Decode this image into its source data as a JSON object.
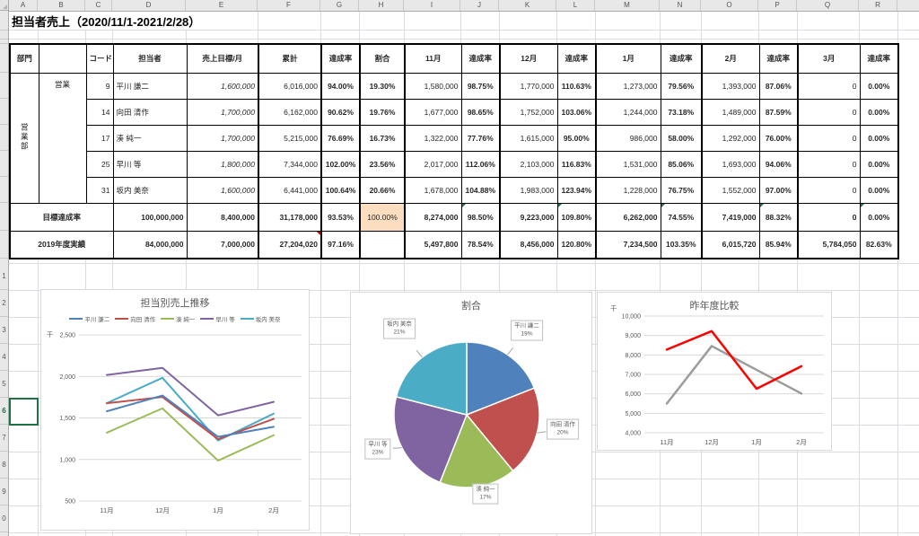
{
  "sheet": {
    "title": "担当者売上（2020/11/1-2021/2/28）",
    "column_letters": [
      "A",
      "B",
      "C",
      "D",
      "E",
      "F",
      "G",
      "H",
      "I",
      "J",
      "K",
      "L",
      "M",
      "N",
      "O",
      "P",
      "Q",
      "R"
    ],
    "visible_row_digits": [
      "1",
      "2",
      "3",
      "4",
      "5",
      "6",
      "7",
      "8",
      "9",
      "0"
    ],
    "selected_row_digit_index": 5
  },
  "table": {
    "headers": {
      "dept": "部門",
      "code": "コード",
      "person": "担当者",
      "target": "売上目標/月",
      "total": "累計",
      "rate": "達成率",
      "share": "割合",
      "months": [
        "11月",
        "12月",
        "1月",
        "2月",
        "3月"
      ]
    },
    "dept_group": "営業部",
    "dept": "営業",
    "rows": [
      {
        "code": "9",
        "name": "平川 謙二",
        "target": "1,600,000",
        "total": "6,016,000",
        "rate": "94.00%",
        "share": "19.30%",
        "months": [
          [
            "1,580,000",
            "98.75%"
          ],
          [
            "1,770,000",
            "110.63%"
          ],
          [
            "1,273,000",
            "79.56%"
          ],
          [
            "1,393,000",
            "87.06%"
          ],
          [
            "0",
            "0.00%"
          ]
        ]
      },
      {
        "code": "14",
        "name": "向田 清作",
        "target": "1,700,000",
        "total": "6,162,000",
        "rate": "90.62%",
        "share": "19.76%",
        "months": [
          [
            "1,677,000",
            "98.65%"
          ],
          [
            "1,752,000",
            "103.06%"
          ],
          [
            "1,244,000",
            "73.18%"
          ],
          [
            "1,489,000",
            "87.59%"
          ],
          [
            "0",
            "0.00%"
          ]
        ]
      },
      {
        "code": "17",
        "name": "湊 純一",
        "target": "1,700,000",
        "total": "5,215,000",
        "rate": "76.69%",
        "share": "16.73%",
        "months": [
          [
            "1,322,000",
            "77.76%"
          ],
          [
            "1,615,000",
            "95.00%"
          ],
          [
            "986,000",
            "58.00%"
          ],
          [
            "1,292,000",
            "76.00%"
          ],
          [
            "0",
            "0.00%"
          ]
        ]
      },
      {
        "code": "25",
        "name": "早川 等",
        "target": "1,800,000",
        "total": "7,344,000",
        "rate": "102.00%",
        "share": "23.56%",
        "months": [
          [
            "2,017,000",
            "112.06%"
          ],
          [
            "2,103,000",
            "116.83%"
          ],
          [
            "1,531,000",
            "85.06%"
          ],
          [
            "1,693,000",
            "94.06%"
          ],
          [
            "0",
            "0.00%"
          ]
        ]
      },
      {
        "code": "31",
        "name": "坂内 美奈",
        "target": "1,600,000",
        "total": "6,441,000",
        "rate": "100.64%",
        "share": "20.66%",
        "months": [
          [
            "1,678,000",
            "104.88%"
          ],
          [
            "1,983,000",
            "123.94%"
          ],
          [
            "1,228,000",
            "76.75%"
          ],
          [
            "1,552,000",
            "97.00%"
          ],
          [
            "0",
            "0.00%"
          ]
        ]
      }
    ],
    "summary_rows": [
      {
        "label": "目標達成率",
        "annual_target": "100,000,000",
        "monthly_target": "8,400,000",
        "total": "31,178,000",
        "rate": "93.53%",
        "share": "100.00%",
        "months": [
          [
            "8,274,000",
            "98.50%"
          ],
          [
            "9,223,000",
            "109.80%"
          ],
          [
            "6,262,000",
            "74.55%"
          ],
          [
            "7,419,000",
            "88.32%"
          ],
          [
            "0",
            "0.00%"
          ]
        ]
      },
      {
        "label": "2019年度実績",
        "annual_target": "84,000,000",
        "monthly_target": "7,000,000",
        "total": "27,204,020",
        "rate": "97.16%",
        "share": "",
        "months": [
          [
            "5,497,800",
            "78.54%"
          ],
          [
            "8,456,000",
            "120.80%"
          ],
          [
            "7,234,500",
            "103.35%"
          ],
          [
            "6,015,720",
            "85.94%"
          ],
          [
            "5,784,050",
            "82.63%"
          ]
        ]
      }
    ]
  },
  "colors": {
    "header_bg": "#1B72C0",
    "header_text": "#FFFF00",
    "summary1_bg": "#FAC090",
    "summary1_share_bg": "#FBDEC0",
    "summary2_bg": "#D9D3E8",
    "percent_text": "#2727D4",
    "target_text": "#C00000",
    "selection_green": "#1E7145",
    "series": [
      "#4F81BD",
      "#C0504D",
      "#9BBB59",
      "#8064A2",
      "#4BACC6"
    ],
    "yoy_series": [
      "#FF0000",
      "#9C9C9C"
    ]
  },
  "chart_data": [
    {
      "type": "line",
      "title": "担当別売上推移",
      "ylabel": "千",
      "categories": [
        "11月",
        "12月",
        "1月",
        "2月"
      ],
      "ylim": [
        500,
        2500
      ],
      "ytick_step": 500,
      "grid": true,
      "legend_position": "top",
      "series": [
        {
          "name": "平川 謙二",
          "values": [
            1580,
            1770,
            1273,
            1393
          ]
        },
        {
          "name": "向田 清作",
          "values": [
            1677,
            1752,
            1244,
            1489
          ]
        },
        {
          "name": "湊 純一",
          "values": [
            1322,
            1615,
            986,
            1292
          ]
        },
        {
          "name": "早川 等",
          "values": [
            2017,
            2103,
            1531,
            1693
          ]
        },
        {
          "name": "坂内 美奈",
          "values": [
            1678,
            1983,
            1228,
            1552
          ]
        }
      ]
    },
    {
      "type": "pie",
      "title": "割合",
      "labels": [
        "平川 謙二",
        "向田 清作",
        "湊 純一",
        "早川 等",
        "坂内 美奈"
      ],
      "values": [
        19,
        20,
        17,
        23,
        21
      ]
    },
    {
      "type": "line",
      "title": "昨年度比較",
      "ylabel": "千",
      "categories": [
        "11月",
        "12月",
        "1月",
        "2月"
      ],
      "ylim": [
        4000,
        10000
      ],
      "ytick_step": 1000,
      "grid": true,
      "legend_position": "none",
      "series": [
        {
          "values": [
            8274,
            9223,
            6262,
            7419
          ]
        },
        {
          "values": [
            5498,
            8456,
            7234,
            6016
          ]
        }
      ]
    }
  ]
}
